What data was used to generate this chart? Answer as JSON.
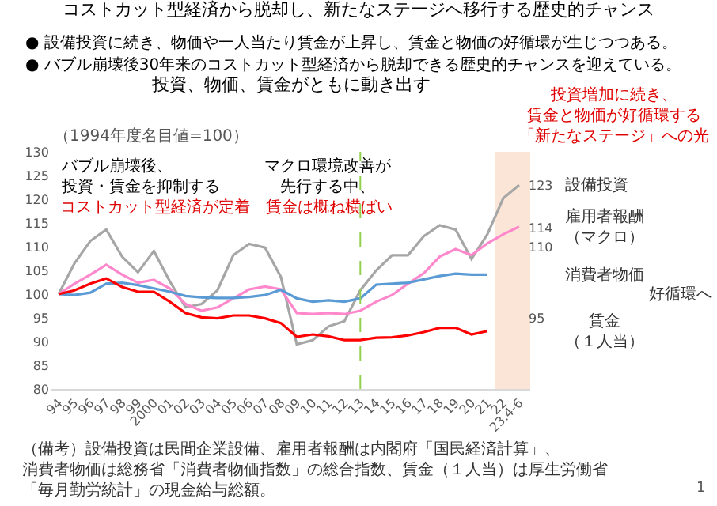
{
  "chart_data": {
    "type": "line",
    "title": "コストカット型経済から脱却し、新たなステージへ移行する歴史的チャンス",
    "subtitle": "投資、物価、賃金がともに動き出す",
    "ylabel": "（1994年度名目値=100）",
    "categories": [
      "94",
      "95",
      "96",
      "97",
      "98",
      "99",
      "2000",
      "01",
      "02",
      "03",
      "04",
      "05",
      "06",
      "07",
      "08",
      "09",
      "10",
      "11",
      "12",
      "13",
      "14",
      "15",
      "16",
      "17",
      "18",
      "19",
      "20",
      "21",
      "22",
      "23.4-6"
    ],
    "series": [
      {
        "name": "設備投資",
        "color": "#a6a6a6",
        "values": [
          100,
          106.5,
          111.2,
          113.6,
          107.9,
          104.6,
          109.1,
          102.7,
          97.2,
          97.9,
          100.8,
          108.2,
          110.6,
          109.8,
          103.6,
          89.4,
          90.3,
          93.2,
          94.3,
          100.8,
          105,
          108.2,
          108.2,
          112.2,
          114.5,
          113.6,
          107.4,
          112.6,
          120.2,
          123
        ]
      },
      {
        "name": "雇用者報酬（マクロ）",
        "color": "#ff88cc",
        "values": [
          100,
          102.2,
          104.1,
          106.2,
          104.1,
          102.4,
          103,
          101.2,
          97.9,
          96.5,
          97.2,
          99.1,
          101,
          101.6,
          101,
          96,
          95.8,
          96,
          95.8,
          96.5,
          98.4,
          99.8,
          102.2,
          104.4,
          107.9,
          109.5,
          108.2,
          110.7,
          112.6,
          114.2
        ]
      },
      {
        "name": "消費者物価",
        "color": "#5b9bd5",
        "values": [
          100,
          99.8,
          100.3,
          102.2,
          102.4,
          101.9,
          101.2,
          100.5,
          99.6,
          99.3,
          99.2,
          99.2,
          99.4,
          99.8,
          100.9,
          99.1,
          98.4,
          98.7,
          98.4,
          99.1,
          102,
          102.2,
          102.4,
          103.1,
          103.8,
          104.3,
          104.1,
          104.1,
          null,
          null
        ]
      },
      {
        "name": "賃金（１人当）",
        "color": "#ff0000",
        "values": [
          100,
          100.8,
          102.2,
          103.3,
          101.5,
          100.5,
          100.5,
          98.4,
          96,
          95.1,
          94.9,
          95.5,
          95.5,
          94.9,
          93.9,
          91,
          91.5,
          91.1,
          90.3,
          90.3,
          90.8,
          90.9,
          91.3,
          92,
          92.9,
          92.9,
          91.5,
          92.2,
          null,
          null
        ]
      }
    ],
    "ylim": [
      80,
      130
    ],
    "yticks": [
      80,
      85,
      90,
      95,
      100,
      105,
      110,
      115,
      120,
      125,
      130
    ],
    "grid": false,
    "marker": "none",
    "line_style": "solid",
    "ref_lines": [
      {
        "axis": "x",
        "value": "13",
        "color": "#92d050",
        "line_style": "dashed"
      }
    ],
    "bands": [
      {
        "axis": "x",
        "from": "22",
        "to": "23.4-6",
        "color": "#fbe5d6"
      }
    ],
    "annotations": [
      "● 設備投資に続き、物価や一人当たり賃金が上昇し、賃金と物価の好循環が生じつつある。",
      "● バブル崩壊後30年来のコストカット型経済から脱却できる歴史的チャンスを迎えている。",
      "バブル崩壊後、投資・賃金を抑制する",
      "コストカット型経済が定着",
      "マクロ環境改善が先行する中、",
      "賃金は概ね横ばい",
      "投資増加に続き、賃金と物価が好循環する「新たなステージ」への光",
      "好循環へ",
      "123",
      "114",
      "110",
      "95",
      "（備考）設備投資は民間企業設備、雇用者報酬は内閣府「国民経済計算」、消費者物価は総務省「消費者物価指数」の総合指数、賃金（１人当）は厚生労働省「毎月勤労統計」の現金給与総額。",
      "1"
    ]
  }
}
